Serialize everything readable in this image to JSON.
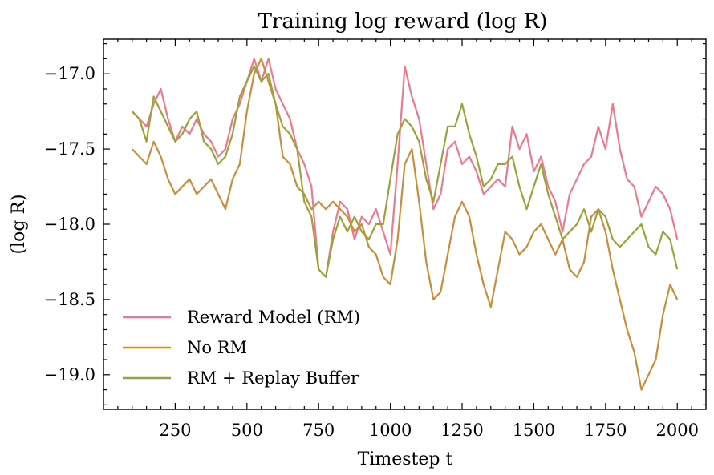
{
  "chart_data": {
    "type": "line",
    "title": "Training log reward (log R)",
    "xlabel": "Timestep t",
    "ylabel": "(log R)",
    "xlim": [
      0,
      2100
    ],
    "ylim": [
      -19.23,
      -16.77
    ],
    "x_ticks": [
      250,
      500,
      750,
      1000,
      1250,
      1500,
      1750,
      2000
    ],
    "x_tick_labels": [
      "250",
      "500",
      "750",
      "1000",
      "1250",
      "1500",
      "1750",
      "2000"
    ],
    "y_ticks": [
      -17.0,
      -17.5,
      -18.0,
      -18.5,
      -19.0
    ],
    "y_tick_labels": [
      "−17.0",
      "−17.5",
      "−18.0",
      "−18.5",
      "−19.0"
    ],
    "grid": false,
    "legend_position": "lower-left",
    "x": [
      100,
      125,
      150,
      175,
      200,
      225,
      250,
      275,
      300,
      325,
      350,
      375,
      400,
      425,
      450,
      475,
      500,
      525,
      550,
      575,
      600,
      625,
      650,
      675,
      700,
      725,
      750,
      775,
      800,
      825,
      850,
      875,
      900,
      925,
      950,
      975,
      1000,
      1025,
      1050,
      1075,
      1100,
      1125,
      1150,
      1175,
      1200,
      1225,
      1250,
      1275,
      1300,
      1325,
      1350,
      1375,
      1400,
      1425,
      1450,
      1475,
      1500,
      1525,
      1550,
      1575,
      1600,
      1625,
      1650,
      1675,
      1700,
      1725,
      1750,
      1775,
      1800,
      1825,
      1850,
      1875,
      1900,
      1925,
      1950,
      1975,
      2000
    ],
    "series": [
      {
        "name": "Reward Model (RM)",
        "color": "#f0788c",
        "values": [
          -17.25,
          -17.3,
          -17.35,
          -17.2,
          -17.1,
          -17.3,
          -17.45,
          -17.35,
          -17.4,
          -17.3,
          -17.4,
          -17.45,
          -17.55,
          -17.5,
          -17.3,
          -17.2,
          -17.05,
          -16.9,
          -17.05,
          -16.9,
          -17.1,
          -17.2,
          -17.3,
          -17.5,
          -17.6,
          -17.75,
          -18.3,
          -18.35,
          -18.05,
          -17.85,
          -17.9,
          -18.1,
          -17.95,
          -18.0,
          -17.9,
          -18.05,
          -18.2,
          -17.6,
          -16.95,
          -17.15,
          -17.3,
          -17.6,
          -17.9,
          -17.8,
          -17.5,
          -17.45,
          -17.6,
          -17.55,
          -17.65,
          -17.8,
          -17.75,
          -17.7,
          -17.75,
          -17.35,
          -17.5,
          -17.4,
          -17.65,
          -17.55,
          -17.75,
          -17.85,
          -18.05,
          -17.8,
          -17.7,
          -17.6,
          -17.55,
          -17.35,
          -17.5,
          -17.2,
          -17.5,
          -17.7,
          -17.75,
          -17.95,
          -17.85,
          -17.75,
          -17.8,
          -17.9,
          -18.1
        ]
      },
      {
        "name": "No RM",
        "color": "#cc8c3a",
        "values": [
          -17.5,
          -17.55,
          -17.6,
          -17.45,
          -17.55,
          -17.7,
          -17.8,
          -17.75,
          -17.7,
          -17.8,
          -17.75,
          -17.7,
          -17.8,
          -17.9,
          -17.7,
          -17.6,
          -17.25,
          -17.0,
          -16.9,
          -17.05,
          -17.2,
          -17.55,
          -17.6,
          -17.75,
          -17.8,
          -17.9,
          -17.85,
          -17.9,
          -17.85,
          -17.9,
          -17.95,
          -18.05,
          -18.0,
          -18.15,
          -18.2,
          -18.35,
          -18.4,
          -18.1,
          -17.6,
          -17.5,
          -17.85,
          -18.25,
          -18.5,
          -18.45,
          -18.2,
          -17.95,
          -17.85,
          -17.95,
          -18.2,
          -18.4,
          -18.55,
          -18.3,
          -18.05,
          -18.1,
          -18.2,
          -18.15,
          -18.05,
          -18.0,
          -18.1,
          -18.2,
          -18.1,
          -18.3,
          -18.35,
          -18.25,
          -17.95,
          -17.9,
          -18.05,
          -18.3,
          -18.5,
          -18.7,
          -18.85,
          -19.1,
          -19.0,
          -18.9,
          -18.6,
          -18.4,
          -18.5
        ]
      },
      {
        "name": "RM + Replay Buffer",
        "color": "#99a33a",
        "values": [
          -17.25,
          -17.3,
          -17.45,
          -17.15,
          -17.25,
          -17.35,
          -17.45,
          -17.4,
          -17.3,
          -17.25,
          -17.45,
          -17.5,
          -17.6,
          -17.55,
          -17.4,
          -17.15,
          -17.05,
          -16.95,
          -17.05,
          -17.0,
          -17.2,
          -17.35,
          -17.4,
          -17.5,
          -17.85,
          -17.95,
          -18.3,
          -18.35,
          -18.1,
          -17.95,
          -18.05,
          -17.95,
          -18.05,
          -18.1,
          -18.0,
          -18.0,
          -17.7,
          -17.4,
          -17.3,
          -17.35,
          -17.45,
          -17.7,
          -17.85,
          -17.6,
          -17.35,
          -17.35,
          -17.2,
          -17.4,
          -17.55,
          -17.75,
          -17.7,
          -17.6,
          -17.6,
          -17.55,
          -17.75,
          -17.9,
          -17.75,
          -17.6,
          -17.8,
          -17.95,
          -18.1,
          -18.05,
          -18.0,
          -17.9,
          -18.05,
          -17.9,
          -17.95,
          -18.1,
          -18.15,
          -18.1,
          -18.05,
          -18.0,
          -18.15,
          -18.2,
          -18.05,
          -18.1,
          -18.3
        ]
      }
    ]
  }
}
